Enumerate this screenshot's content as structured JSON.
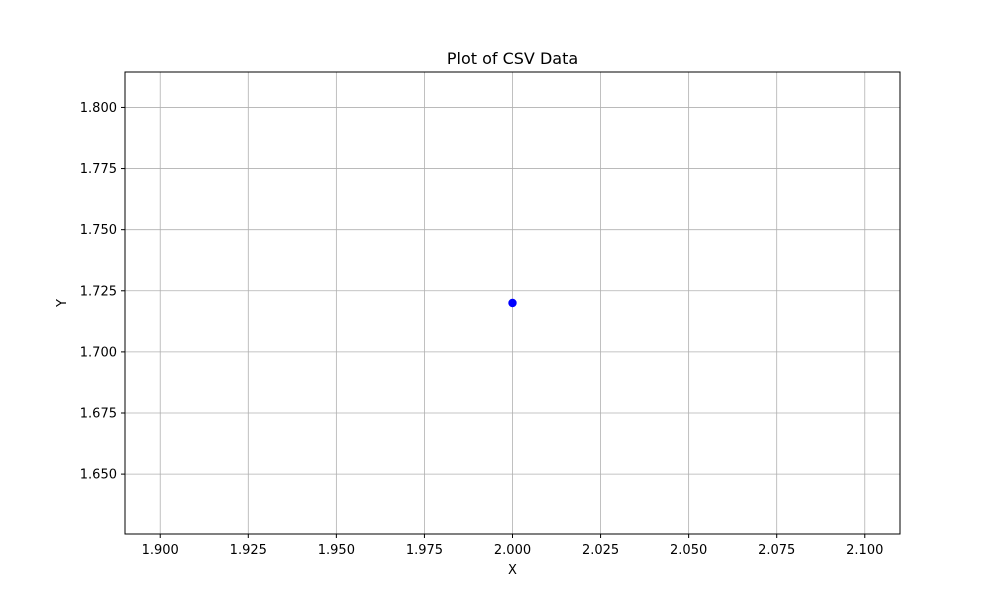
{
  "chart_data": {
    "type": "scatter",
    "title": "Plot of CSV Data",
    "xlabel": "X",
    "ylabel": "Y",
    "xlim": [
      1.89,
      2.11
    ],
    "ylim": [
      1.6255,
      1.8145
    ],
    "xticks": [
      1.9,
      1.925,
      1.95,
      1.975,
      2.0,
      2.025,
      2.05,
      2.075,
      2.1
    ],
    "xtick_labels": [
      "1.900",
      "1.925",
      "1.950",
      "1.975",
      "2.000",
      "2.025",
      "2.050",
      "2.075",
      "2.100"
    ],
    "yticks": [
      1.65,
      1.675,
      1.7,
      1.725,
      1.75,
      1.775,
      1.8
    ],
    "ytick_labels": [
      "1.650",
      "1.675",
      "1.700",
      "1.725",
      "1.750",
      "1.775",
      "1.800"
    ],
    "grid": true,
    "series": [
      {
        "color": "#0000ff",
        "marker": "circle",
        "points": [
          {
            "x": 2.0,
            "y": 1.72
          }
        ]
      }
    ]
  }
}
